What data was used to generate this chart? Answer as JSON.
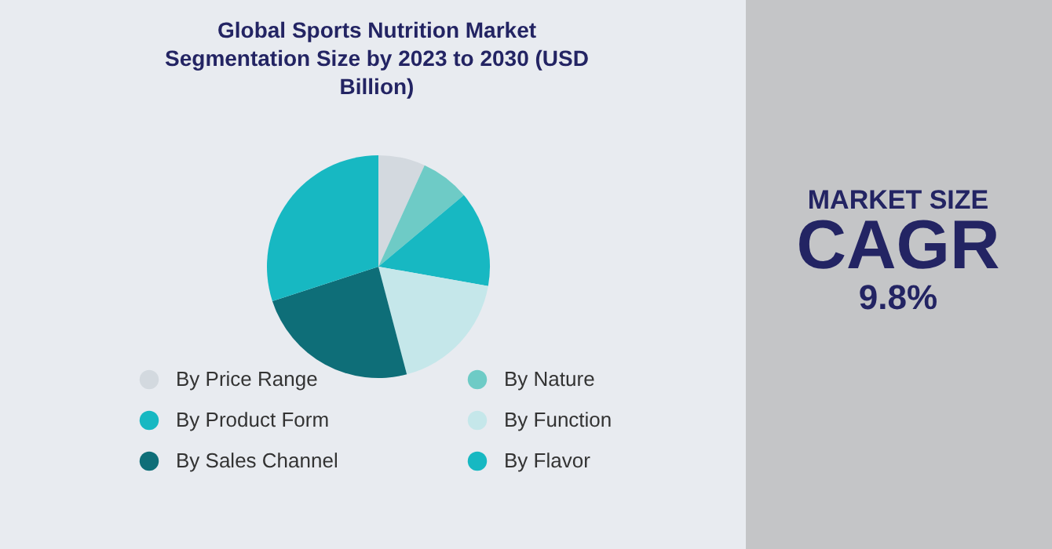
{
  "chart_data": {
    "type": "pie",
    "title": "Global Sports Nutrition Market Segmentation Size by 2023 to 2030 (USD Billion)",
    "categories": [
      "By Price Range",
      "By Nature",
      "By Product Form",
      "By Function",
      "By Sales Channel",
      "By Flavor"
    ],
    "values": [
      6.8,
      7.1,
      13.9,
      18.1,
      24.1,
      30.0
    ],
    "colors": [
      "#d3d9df",
      "#6ecbc6",
      "#17b8c2",
      "#c5e7ea",
      "#0e6e78",
      "#17b8c2"
    ],
    "legend": "bottom",
    "annotations": [
      "MARKET SIZE",
      "CAGR",
      "9.8%"
    ]
  }
}
